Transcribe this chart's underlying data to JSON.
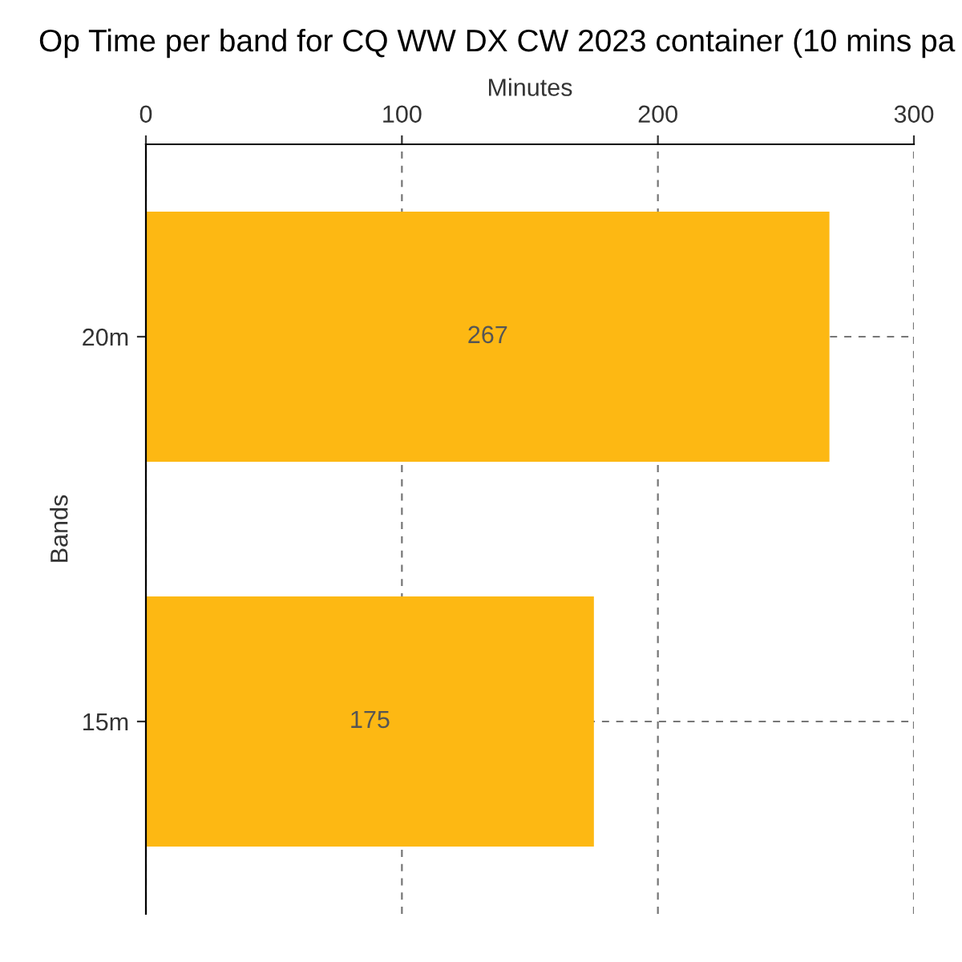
{
  "chart_data": {
    "type": "bar",
    "orientation": "horizontal",
    "title": "Op Time per band for CQ WW DX CW 2023 container (10 mins pa",
    "xlabel": "Minutes",
    "ylabel": "Bands",
    "categories": [
      "20m",
      "15m"
    ],
    "values": [
      267,
      175
    ],
    "color": "#fdb813",
    "xlim": [
      0,
      300
    ],
    "xticks": [
      0,
      100,
      200,
      300
    ],
    "grid": true,
    "data_labels": true
  }
}
